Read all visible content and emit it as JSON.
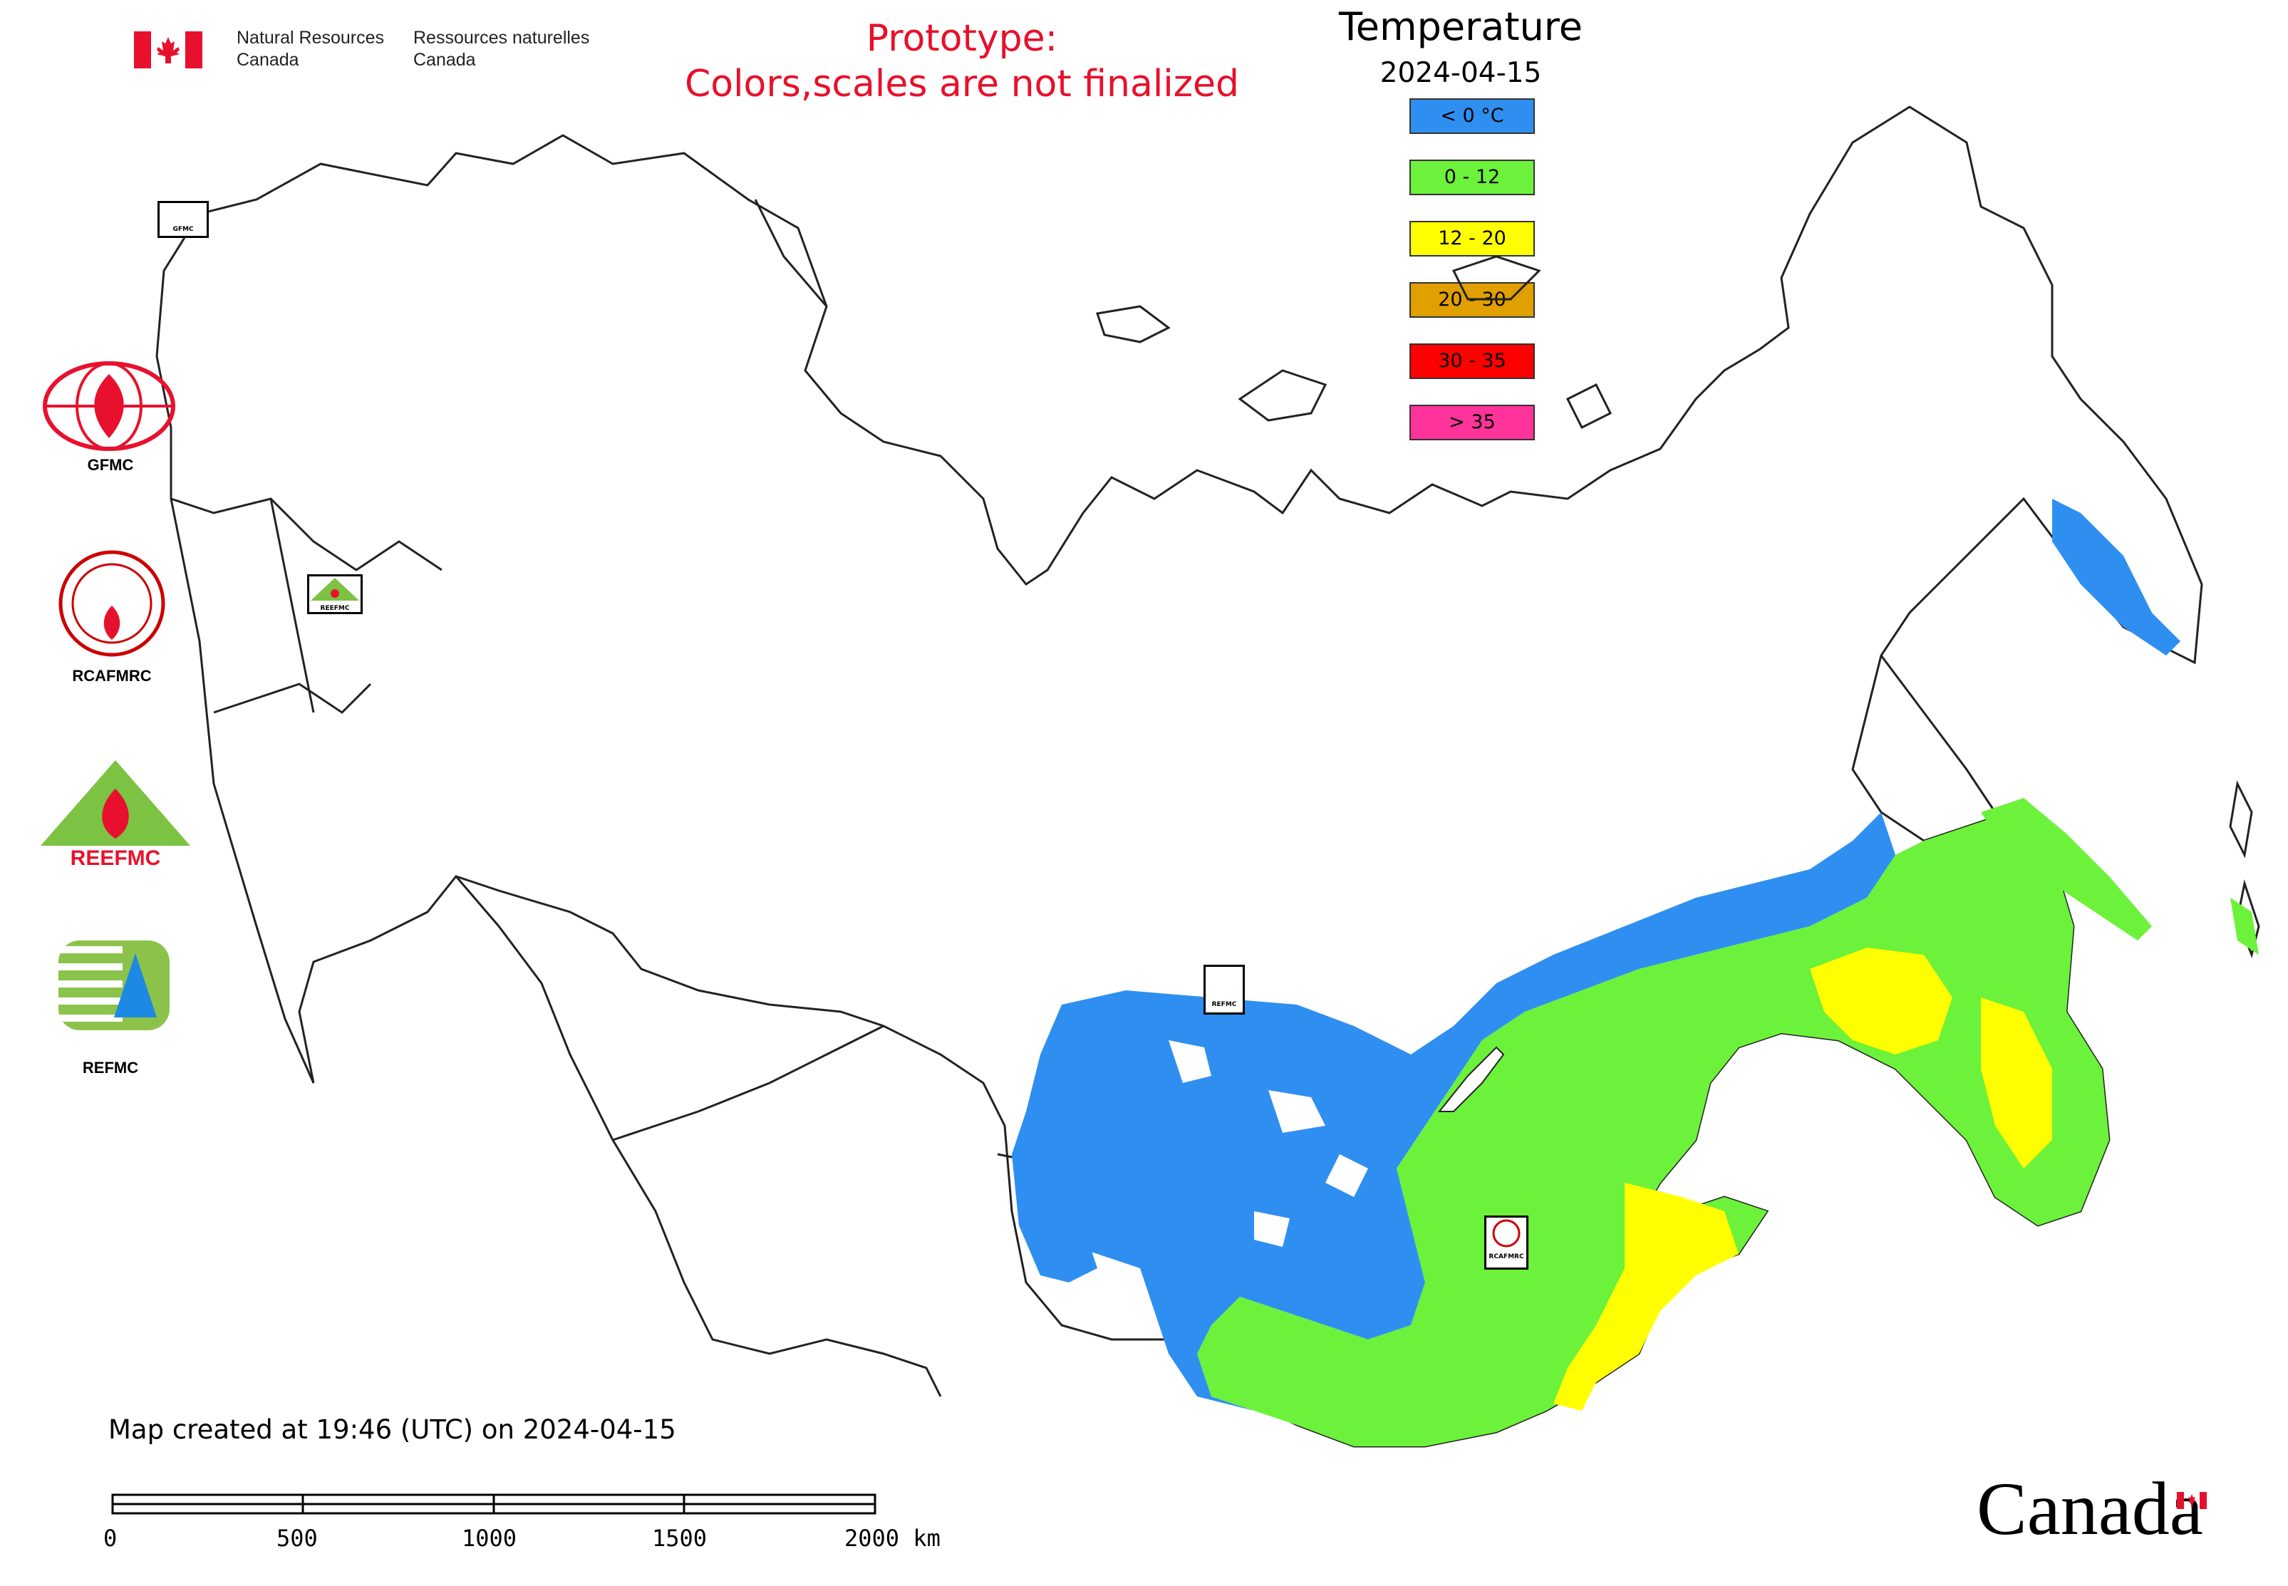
{
  "header": {
    "org_en_line1": "Natural Resources",
    "org_en_line2": "Canada",
    "org_fr_line1": "Ressources naturelles",
    "org_fr_line2": "Canada",
    "notice_line1": "Prototype:",
    "notice_line2": "Colors,scales are not finalized"
  },
  "legend": {
    "title": "Temperature",
    "date": "2024-04-15",
    "items": [
      {
        "label": "< 0 °C",
        "color": "#2f8ff0"
      },
      {
        "label": "0 - 12",
        "color": "#6cf23a"
      },
      {
        "label": "12 - 20",
        "color": "#ffff00"
      },
      {
        "label": "20 - 30",
        "color": "#e0a000"
      },
      {
        "label": "30 - 35",
        "color": "#ff0000"
      },
      {
        "label": "> 35",
        "color": "#ff3399"
      }
    ]
  },
  "side_logos": [
    {
      "label": "GFMC",
      "icon": "gfmc-logo-icon"
    },
    {
      "label": "RCAFMRC",
      "icon": "rcafmrc-logo-icon"
    },
    {
      "label": "",
      "icon": "reefmc-logo-icon",
      "logo_text": "REEFMC"
    },
    {
      "label": "REFMC",
      "icon": "refmc-logo-icon"
    }
  ],
  "map_markers": [
    {
      "label": "GFMC"
    },
    {
      "label": "REEFMC"
    },
    {
      "label": "REFMC"
    },
    {
      "label": "RCAFMRC"
    }
  ],
  "footer": {
    "created_text": "Map created at 19:46 (UTC) on 2024-04-15",
    "scale_labels": [
      "0",
      "500",
      "1000",
      "1500",
      "2000 km"
    ],
    "wordmark": "Canada"
  }
}
